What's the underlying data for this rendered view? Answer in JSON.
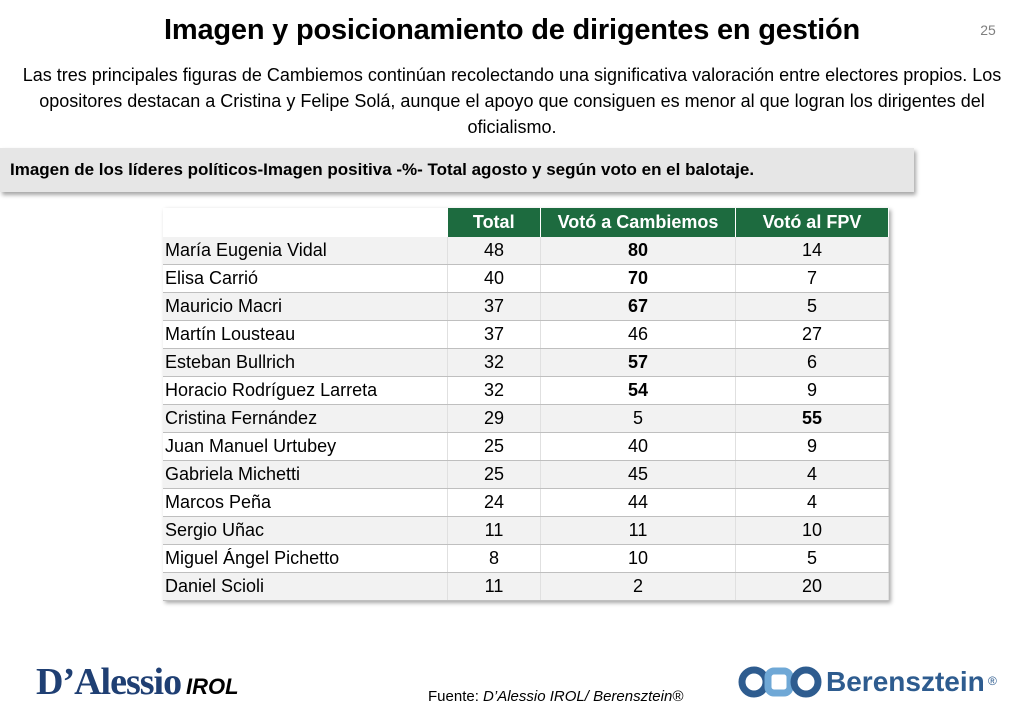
{
  "slide": {
    "title": "Imagen y posicionamiento de dirigentes en gestión",
    "page_number": "25",
    "intro": "Las tres principales figuras de Cambiemos continúan recolectando una significativa valoración entre electores propios. Los opositores destacan a Cristina y Felipe Solá, aunque el apoyo que consiguen es menor al que logran los dirigentes del oficialismo.",
    "banner": "Imagen de los líderes políticos-Imagen positiva -%- Total agosto y según voto en el balotaje."
  },
  "table": {
    "headers": [
      "",
      "Total",
      "Votó a Cambiemos",
      "Votó al FPV"
    ],
    "header_color": "#1d6b3f",
    "rows": [
      {
        "name": "María Eugenia Vidal",
        "total": "48",
        "cambiemos": "80",
        "fpv": "14",
        "bold": "cambiemos"
      },
      {
        "name": "Elisa Carrió",
        "total": "40",
        "cambiemos": "70",
        "fpv": "7",
        "bold": "cambiemos"
      },
      {
        "name": "Mauricio Macri",
        "total": "37",
        "cambiemos": "67",
        "fpv": "5",
        "bold": "cambiemos"
      },
      {
        "name": "Martín Lousteau",
        "total": "37",
        "cambiemos": "46",
        "fpv": "27",
        "bold": ""
      },
      {
        "name": "Esteban Bullrich",
        "total": "32",
        "cambiemos": "57",
        "fpv": "6",
        "bold": "cambiemos"
      },
      {
        "name": "Horacio Rodríguez Larreta",
        "total": "32",
        "cambiemos": "54",
        "fpv": "9",
        "bold": "cambiemos"
      },
      {
        "name": "Cristina Fernández",
        "total": "29",
        "cambiemos": "5",
        "fpv": "55",
        "bold": "fpv"
      },
      {
        "name": "Juan Manuel Urtubey",
        "total": "25",
        "cambiemos": "40",
        "fpv": "9",
        "bold": ""
      },
      {
        "name": "Gabriela Michetti",
        "total": "25",
        "cambiemos": "45",
        "fpv": "4",
        "bold": ""
      },
      {
        "name": "Marcos Peña",
        "total": "24",
        "cambiemos": "44",
        "fpv": "4",
        "bold": ""
      },
      {
        "name": "Sergio Uñac",
        "total": "11",
        "cambiemos": "11",
        "fpv": "10",
        "bold": ""
      },
      {
        "name": "Miguel Ángel Pichetto",
        "total": "8",
        "cambiemos": "10",
        "fpv": "5",
        "bold": ""
      },
      {
        "name": "Daniel Scioli",
        "total": "11",
        "cambiemos": "2",
        "fpv": "20",
        "bold": ""
      }
    ]
  },
  "footer": {
    "logo_left_main": "D’Alessio",
    "logo_left_sub": "IROL",
    "source_prefix": "Fuente: ",
    "source_text": "D’Alessio IROL/ Berensztein®",
    "logo_right": "Berensztein",
    "logo_right_mark": "®",
    "brand_colors": {
      "dalessio": "#1f3f73",
      "berensztein": "#2e5c8f"
    }
  }
}
